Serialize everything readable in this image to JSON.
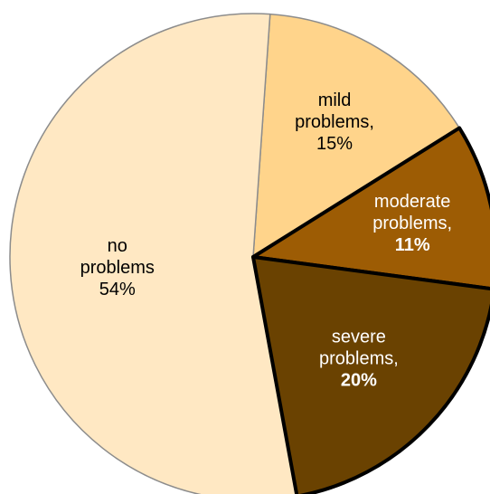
{
  "chart_data": {
    "type": "pie",
    "title": "",
    "legend": "none",
    "slices": [
      {
        "lines": [
          "mild",
          "problems,",
          "15%"
        ],
        "bold_last": false,
        "value": 15,
        "color": "#ffd48b",
        "text_color": "#000000",
        "emphasized": false
      },
      {
        "lines": [
          "moderate",
          "problems,",
          "11%"
        ],
        "bold_last": true,
        "value": 11,
        "color": "#9d5c04",
        "text_color": "#ffffff",
        "emphasized": true
      },
      {
        "lines": [
          "severe",
          "problems,",
          "20%"
        ],
        "bold_last": true,
        "value": 20,
        "color": "#6a4201",
        "text_color": "#ffffff",
        "emphasized": true
      },
      {
        "lines": [
          "no",
          "problems",
          "54%"
        ],
        "bold_last": false,
        "value": 54,
        "color": "#ffe8c3",
        "text_color": "#000000",
        "emphasized": false
      }
    ]
  }
}
